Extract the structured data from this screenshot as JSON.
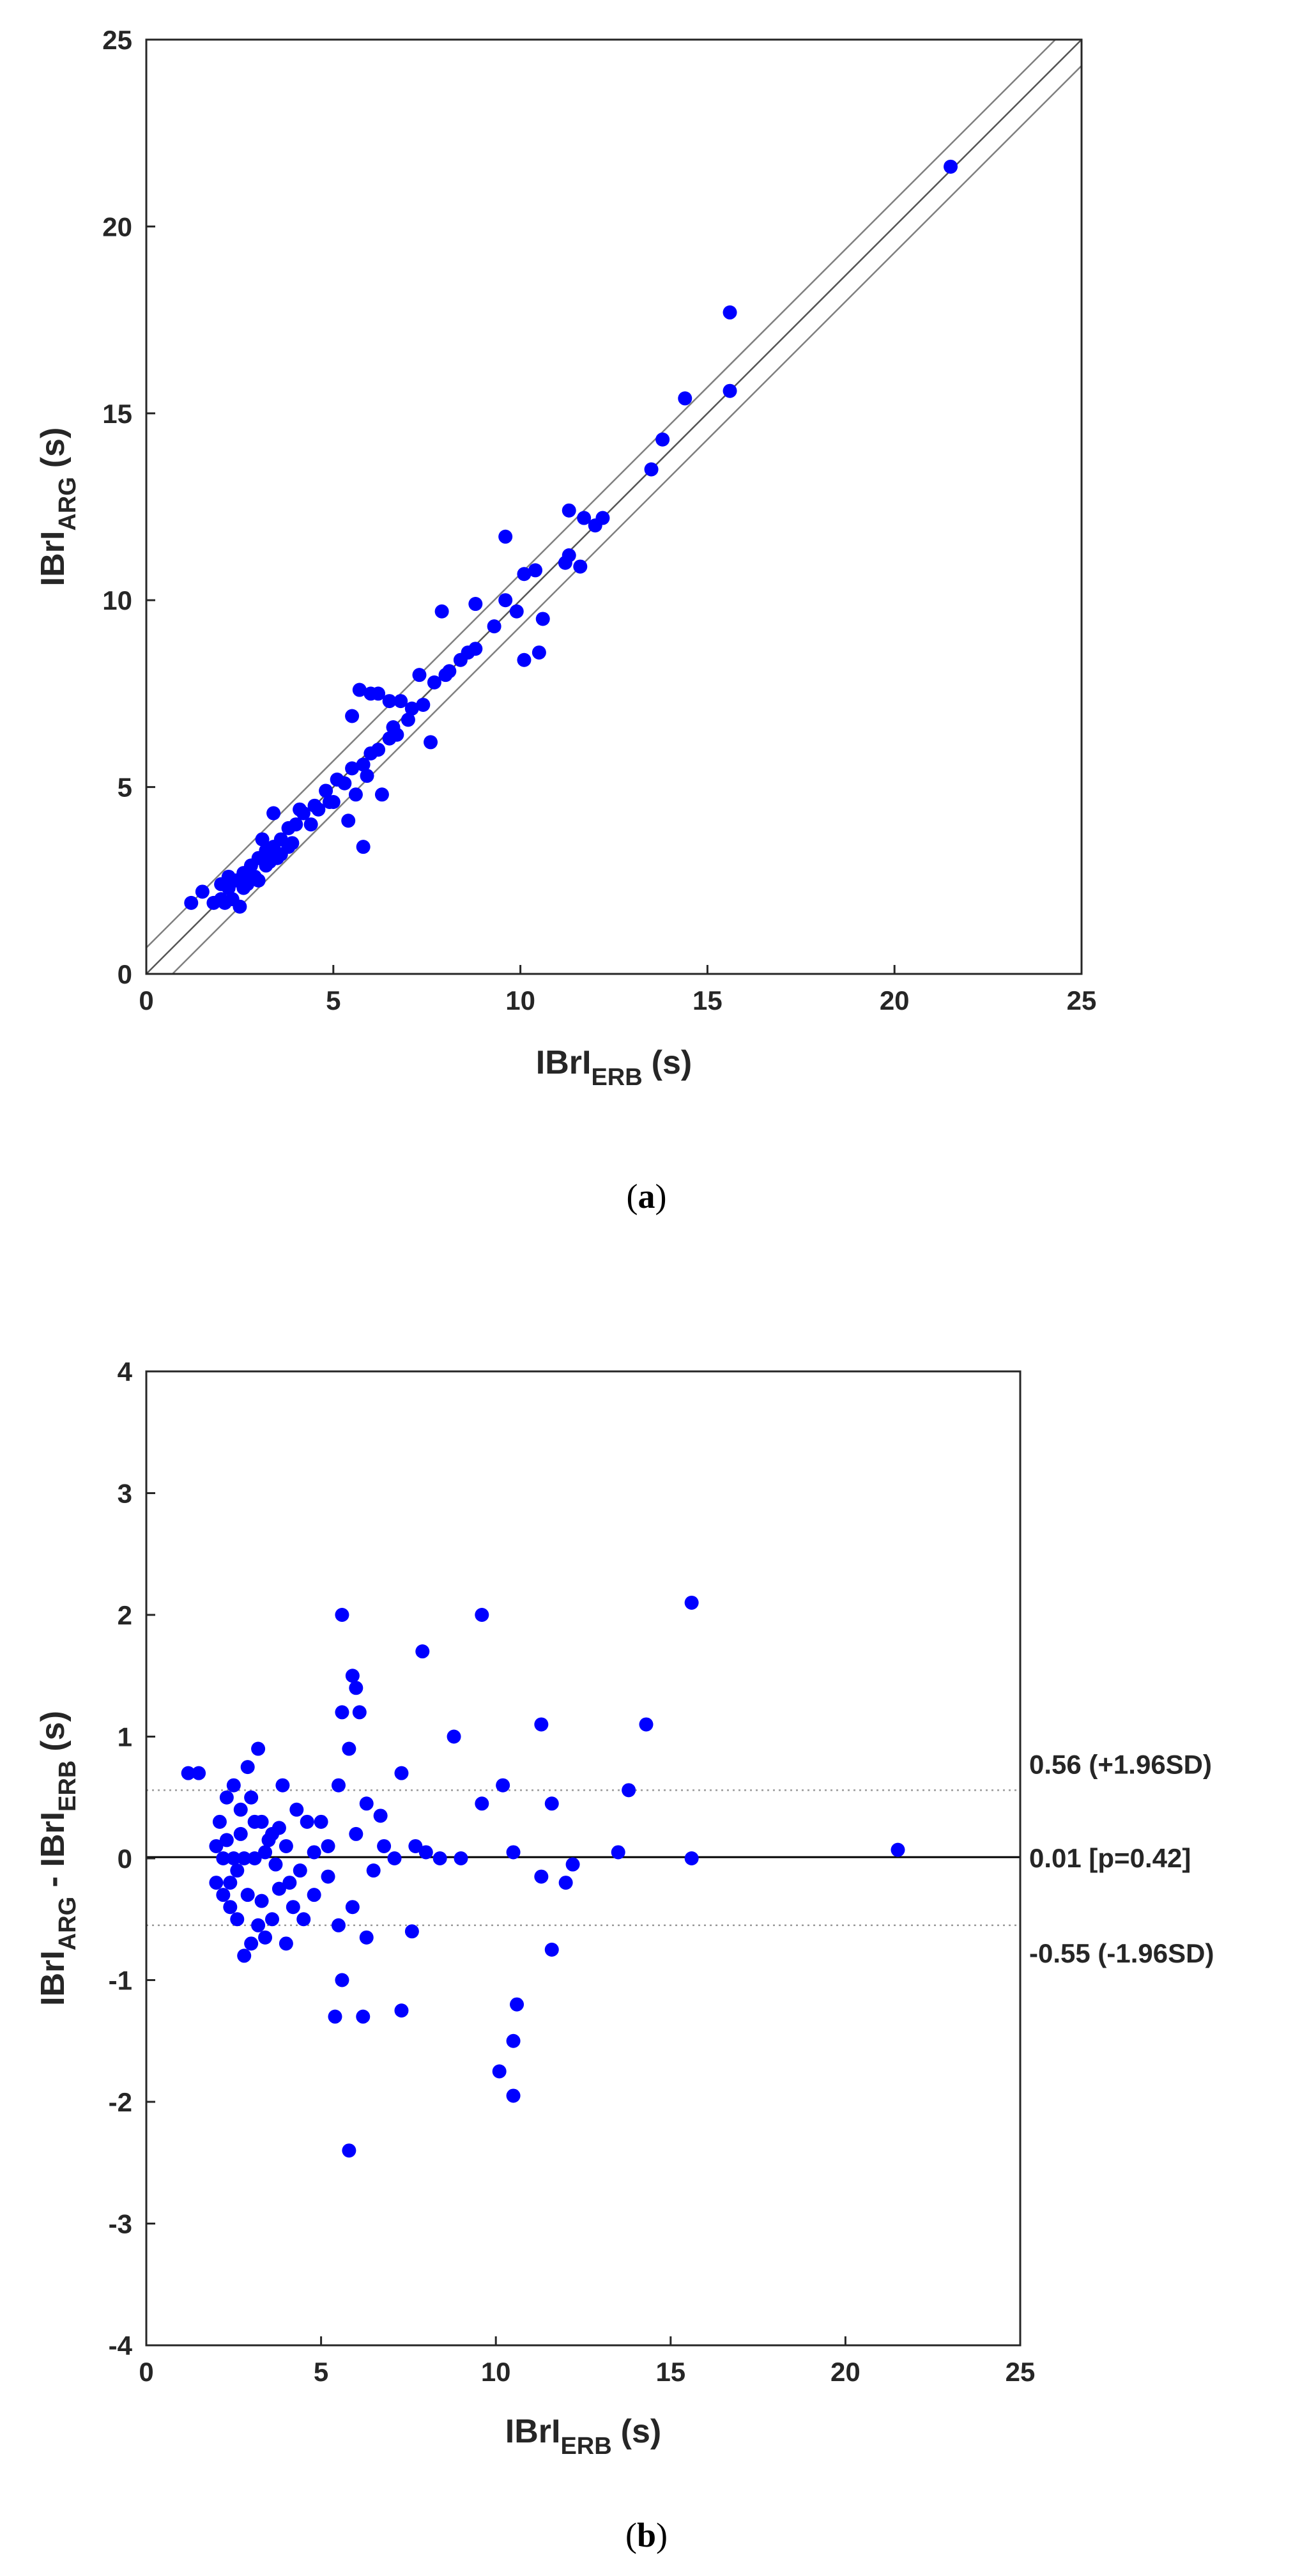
{
  "captions": {
    "a": "(a)",
    "b": "(b)",
    "a_letter": "a",
    "b_letter": "b"
  },
  "colors": {
    "points": "#0000ff",
    "axes": "#262626",
    "lines": "#7f7f7f",
    "text": "#262626"
  },
  "chart_data": [
    {
      "id": "a",
      "type": "scatter",
      "title": "",
      "xlabel": {
        "main": "IBrI",
        "sub": "ERB",
        "unit": "(s)"
      },
      "ylabel": {
        "main": "IBrI",
        "sub": "ARG",
        "unit": "(s)"
      },
      "xlim": [
        0,
        25
      ],
      "ylim": [
        0,
        25
      ],
      "xticks": [
        0,
        5,
        10,
        15,
        20,
        25
      ],
      "yticks": [
        0,
        5,
        10,
        15,
        20,
        25
      ],
      "grid": false,
      "reference_lines": [
        {
          "intercept": 0.7,
          "slope": 1
        },
        {
          "intercept": 0,
          "slope": 1
        },
        {
          "intercept": -0.7,
          "slope": 1
        }
      ],
      "points": [
        [
          21.5,
          21.6
        ],
        [
          15.6,
          17.7
        ],
        [
          15.6,
          15.6
        ],
        [
          14.4,
          15.4
        ],
        [
          13.8,
          14.3
        ],
        [
          13.5,
          13.5
        ],
        [
          11.3,
          12.4
        ],
        [
          11.7,
          12.2
        ],
        [
          12.0,
          12.0
        ],
        [
          12.2,
          12.2
        ],
        [
          11.3,
          11.2
        ],
        [
          11.2,
          11.0
        ],
        [
          11.6,
          10.9
        ],
        [
          9.6,
          11.7
        ],
        [
          10.4,
          10.8
        ],
        [
          10.1,
          10.7
        ],
        [
          9.6,
          10.0
        ],
        [
          9.9,
          9.7
        ],
        [
          10.6,
          9.5
        ],
        [
          10.1,
          8.4
        ],
        [
          10.5,
          8.6
        ],
        [
          9.3,
          9.3
        ],
        [
          8.8,
          9.9
        ],
        [
          7.9,
          9.7
        ],
        [
          8.8,
          8.7
        ],
        [
          8.4,
          8.4
        ],
        [
          8.1,
          8.1
        ],
        [
          7.7,
          7.8
        ],
        [
          7.3,
          8.0
        ],
        [
          7.6,
          6.2
        ],
        [
          7.1,
          7.1
        ],
        [
          6.6,
          6.6
        ],
        [
          6.8,
          7.3
        ],
        [
          6.5,
          7.3
        ],
        [
          6.2,
          7.5
        ],
        [
          6.0,
          7.5
        ],
        [
          5.7,
          7.6
        ],
        [
          5.5,
          6.9
        ],
        [
          5.8,
          5.6
        ],
        [
          5.9,
          5.3
        ],
        [
          5.6,
          4.8
        ],
        [
          6.3,
          4.8
        ],
        [
          5.4,
          4.1
        ],
        [
          5.8,
          3.4
        ],
        [
          6.5,
          6.3
        ],
        [
          7.0,
          6.8
        ],
        [
          6.2,
          6.0
        ],
        [
          5.5,
          5.5
        ],
        [
          5.1,
          5.2
        ],
        [
          4.8,
          4.9
        ],
        [
          4.5,
          4.5
        ],
        [
          4.2,
          4.3
        ],
        [
          4.0,
          4.0
        ],
        [
          3.8,
          3.9
        ],
        [
          3.6,
          3.6
        ],
        [
          3.4,
          3.4
        ],
        [
          3.2,
          3.3
        ],
        [
          3.0,
          3.1
        ],
        [
          2.8,
          2.9
        ],
        [
          2.6,
          2.7
        ],
        [
          2.4,
          2.5
        ],
        [
          2.2,
          2.3
        ],
        [
          2.0,
          2.0
        ],
        [
          1.8,
          1.9
        ],
        [
          1.2,
          1.9
        ],
        [
          1.5,
          2.2
        ],
        [
          2.0,
          2.4
        ],
        [
          2.3,
          2.0
        ],
        [
          2.5,
          1.8
        ],
        [
          3.0,
          2.5
        ],
        [
          3.3,
          3.0
        ],
        [
          3.8,
          3.4
        ],
        [
          4.4,
          4.0
        ],
        [
          4.6,
          4.4
        ],
        [
          4.1,
          4.4
        ],
        [
          3.4,
          4.3
        ],
        [
          3.1,
          3.6
        ],
        [
          3.5,
          3.1
        ],
        [
          4.9,
          4.6
        ],
        [
          5.3,
          5.1
        ],
        [
          5.0,
          4.6
        ],
        [
          6.7,
          6.4
        ],
        [
          6.0,
          5.9
        ],
        [
          7.4,
          7.2
        ],
        [
          8.0,
          8.0
        ],
        [
          8.6,
          8.6
        ],
        [
          2.7,
          2.4
        ],
        [
          2.9,
          2.6
        ],
        [
          2.2,
          2.6
        ],
        [
          2.6,
          2.3
        ],
        [
          3.6,
          3.2
        ],
        [
          3.9,
          3.5
        ],
        [
          2.1,
          1.9
        ],
        [
          3.2,
          2.9
        ]
      ],
      "series": [
        {
          "name": "",
          "values": []
        }
      ]
    },
    {
      "id": "b",
      "type": "scatter",
      "title": "",
      "xlabel": {
        "main": "IBrI",
        "sub": "ERB",
        "unit": "(s)"
      },
      "ylabel": {
        "main1": "IBrI",
        "sub1": "ARG",
        "mid": " - IBrI",
        "sub2": "ERB",
        "unit": "(s)"
      },
      "xlim": [
        0,
        25
      ],
      "ylim": [
        -4,
        4
      ],
      "xticks": [
        0,
        5,
        10,
        15,
        20,
        25
      ],
      "yticks": [
        -4,
        -3,
        -2,
        -1,
        0,
        1,
        2,
        3,
        4
      ],
      "grid": false,
      "reference_lines": [
        {
          "y": 0.56,
          "style": "dotted",
          "label": "0.56 (+1.96SD)"
        },
        {
          "y": 0.01,
          "style": "solid",
          "label": "0.01 [p=0.42]"
        },
        {
          "y": -0.55,
          "style": "dotted",
          "label": "-0.55 (-1.96SD)"
        }
      ],
      "points": [
        [
          15.6,
          2.1
        ],
        [
          9.6,
          2.0
        ],
        [
          5.6,
          2.0
        ],
        [
          5.9,
          1.5
        ],
        [
          6.0,
          1.4
        ],
        [
          7.9,
          1.7
        ],
        [
          6.1,
          1.2
        ],
        [
          5.6,
          1.2
        ],
        [
          14.3,
          1.1
        ],
        [
          11.3,
          1.1
        ],
        [
          8.8,
          1.0
        ],
        [
          5.8,
          0.9
        ],
        [
          10.2,
          0.6
        ],
        [
          13.8,
          0.56
        ],
        [
          7.3,
          0.7
        ],
        [
          9.6,
          0.45
        ],
        [
          11.6,
          0.45
        ],
        [
          6.3,
          0.45
        ],
        [
          1.2,
          0.7
        ],
        [
          1.5,
          0.7
        ],
        [
          2.9,
          0.75
        ],
        [
          3.2,
          0.9
        ],
        [
          5.5,
          0.6
        ],
        [
          21.5,
          0.07
        ],
        [
          15.6,
          0.0
        ],
        [
          13.5,
          0.05
        ],
        [
          12.2,
          -0.05
        ],
        [
          11.3,
          -0.15
        ],
        [
          10.5,
          0.05
        ],
        [
          12.0,
          -0.2
        ],
        [
          11.6,
          -0.75
        ],
        [
          10.6,
          -1.2
        ],
        [
          10.1,
          -1.75
        ],
        [
          10.5,
          -1.5
        ],
        [
          10.5,
          -1.95
        ],
        [
          5.8,
          -2.4
        ],
        [
          7.3,
          -1.25
        ],
        [
          6.2,
          -1.3
        ],
        [
          5.4,
          -1.3
        ],
        [
          5.6,
          -1.0
        ],
        [
          7.6,
          -0.6
        ],
        [
          6.3,
          -0.65
        ],
        [
          9.0,
          0.0
        ],
        [
          8.4,
          0.0
        ],
        [
          8.0,
          0.05
        ],
        [
          7.7,
          0.1
        ],
        [
          7.1,
          0.0
        ],
        [
          6.8,
          0.1
        ],
        [
          6.5,
          -0.1
        ],
        [
          6.7,
          0.35
        ],
        [
          5.9,
          -0.4
        ],
        [
          5.5,
          -0.55
        ],
        [
          4.8,
          -0.3
        ],
        [
          4.5,
          -0.5
        ],
        [
          4.2,
          -0.4
        ],
        [
          4.0,
          -0.7
        ],
        [
          3.8,
          -0.25
        ],
        [
          3.6,
          -0.5
        ],
        [
          3.4,
          -0.65
        ],
        [
          3.2,
          -0.55
        ],
        [
          3.0,
          -0.7
        ],
        [
          2.8,
          -0.8
        ],
        [
          2.6,
          -0.5
        ],
        [
          2.4,
          -0.4
        ],
        [
          2.2,
          -0.3
        ],
        [
          2.0,
          -0.2
        ],
        [
          2.1,
          0.3
        ],
        [
          2.3,
          0.5
        ],
        [
          2.5,
          0.6
        ],
        [
          2.7,
          0.4
        ],
        [
          3.0,
          0.5
        ],
        [
          3.3,
          0.3
        ],
        [
          3.6,
          0.2
        ],
        [
          3.9,
          0.6
        ],
        [
          4.3,
          0.4
        ],
        [
          4.6,
          0.3
        ],
        [
          5.0,
          0.3
        ],
        [
          5.2,
          0.1
        ],
        [
          2.2,
          0.0
        ],
        [
          2.5,
          0.0
        ],
        [
          2.8,
          0.0
        ],
        [
          3.1,
          0.0
        ],
        [
          3.4,
          0.05
        ],
        [
          3.7,
          -0.05
        ],
        [
          4.0,
          0.1
        ],
        [
          4.4,
          -0.1
        ],
        [
          4.8,
          0.05
        ],
        [
          5.2,
          -0.15
        ],
        [
          2.0,
          0.1
        ],
        [
          2.4,
          -0.2
        ],
        [
          2.7,
          0.2
        ],
        [
          2.9,
          -0.3
        ],
        [
          3.1,
          0.3
        ],
        [
          3.3,
          -0.35
        ],
        [
          3.5,
          0.15
        ],
        [
          2.6,
          -0.1
        ],
        [
          2.3,
          0.15
        ],
        [
          6.0,
          0.2
        ],
        [
          4.1,
          -0.2
        ],
        [
          3.8,
          0.25
        ]
      ],
      "series": [
        {
          "name": "",
          "values": []
        }
      ]
    }
  ]
}
